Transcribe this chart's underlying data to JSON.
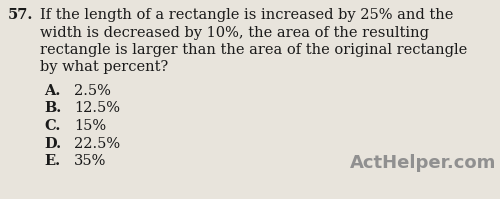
{
  "background_color": "#e8e4dc",
  "question_number": "57.",
  "question_text_lines": [
    "If the length of a rectangle is increased by 25% and the",
    "width is decreased by 10%, the area of the resulting",
    "rectangle is larger than the area of the original rectangle",
    "by what percent?"
  ],
  "choices": [
    [
      "A.",
      "2.5%"
    ],
    [
      "B.",
      "12.5%"
    ],
    [
      "C.",
      "15%"
    ],
    [
      "D.",
      "22.5%"
    ],
    [
      "E.",
      "35%"
    ]
  ],
  "watermark": "ActHelper.com",
  "text_color": "#1a1a1a",
  "watermark_color": "#909090",
  "font_size_question": 10.5,
  "font_size_choices": 10.5,
  "font_size_watermark": 13.0,
  "fig_width": 5.0,
  "fig_height": 1.99,
  "dpi": 100
}
